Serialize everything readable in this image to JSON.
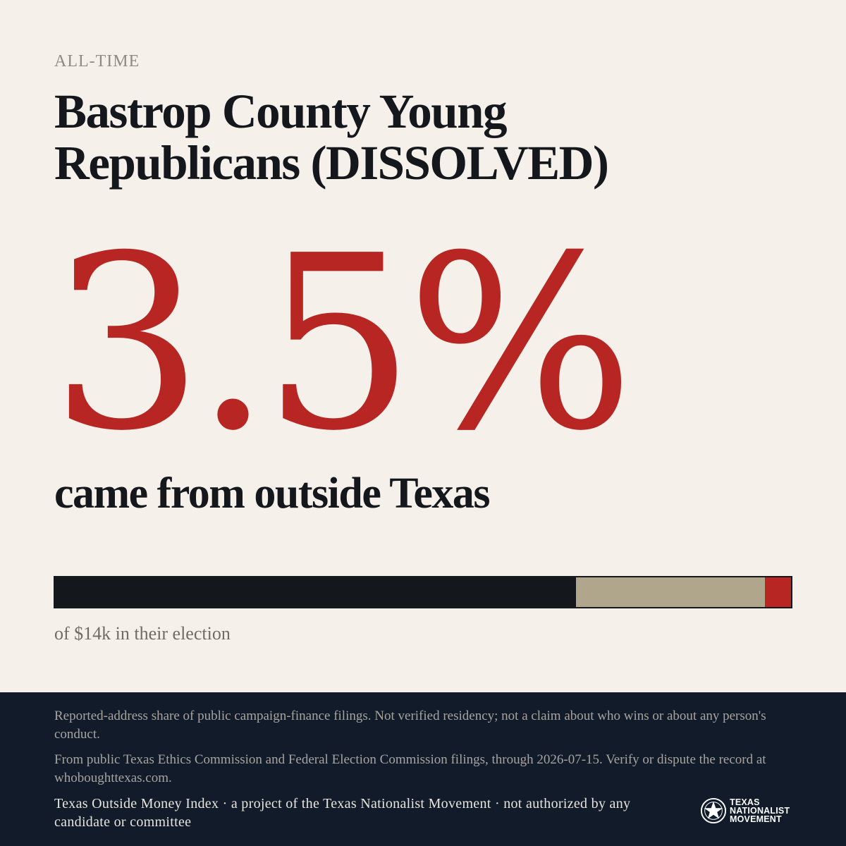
{
  "header": {
    "eyebrow": "ALL-TIME",
    "title": "Bastrop County Young Republicans (DISSOLVED)"
  },
  "stat": {
    "value": "3.5%",
    "subhead": "came from outside Texas"
  },
  "bar": {
    "segments": [
      {
        "fraction": 0.708,
        "color": "#14171c"
      },
      {
        "fraction": 0.257,
        "color": "#b0a68c"
      },
      {
        "fraction": 0.035,
        "color": "#b72622"
      }
    ]
  },
  "caption": "of $14k in their election",
  "footer": {
    "note1": "Reported-address share of public campaign-finance filings. Not verified residency; not a claim about who wins or about any person's conduct.",
    "note2": "From public Texas Ethics Commission and Federal Election Commission filings, through 2026-07-15. Verify or dispute the record at whoboughttexas.com.",
    "note3": "Texas Outside Money Index · a project of the Texas Nationalist Movement · not authorized by any candidate or committee",
    "logo": {
      "icon": "star-seal-icon",
      "line1": "TEXAS",
      "line2": "NATIONALIST",
      "line3": "MOVEMENT"
    }
  },
  "colors": {
    "background": "#f5f1ea",
    "accent": "#b72622",
    "ink": "#14171c",
    "footer": "#111b29"
  }
}
